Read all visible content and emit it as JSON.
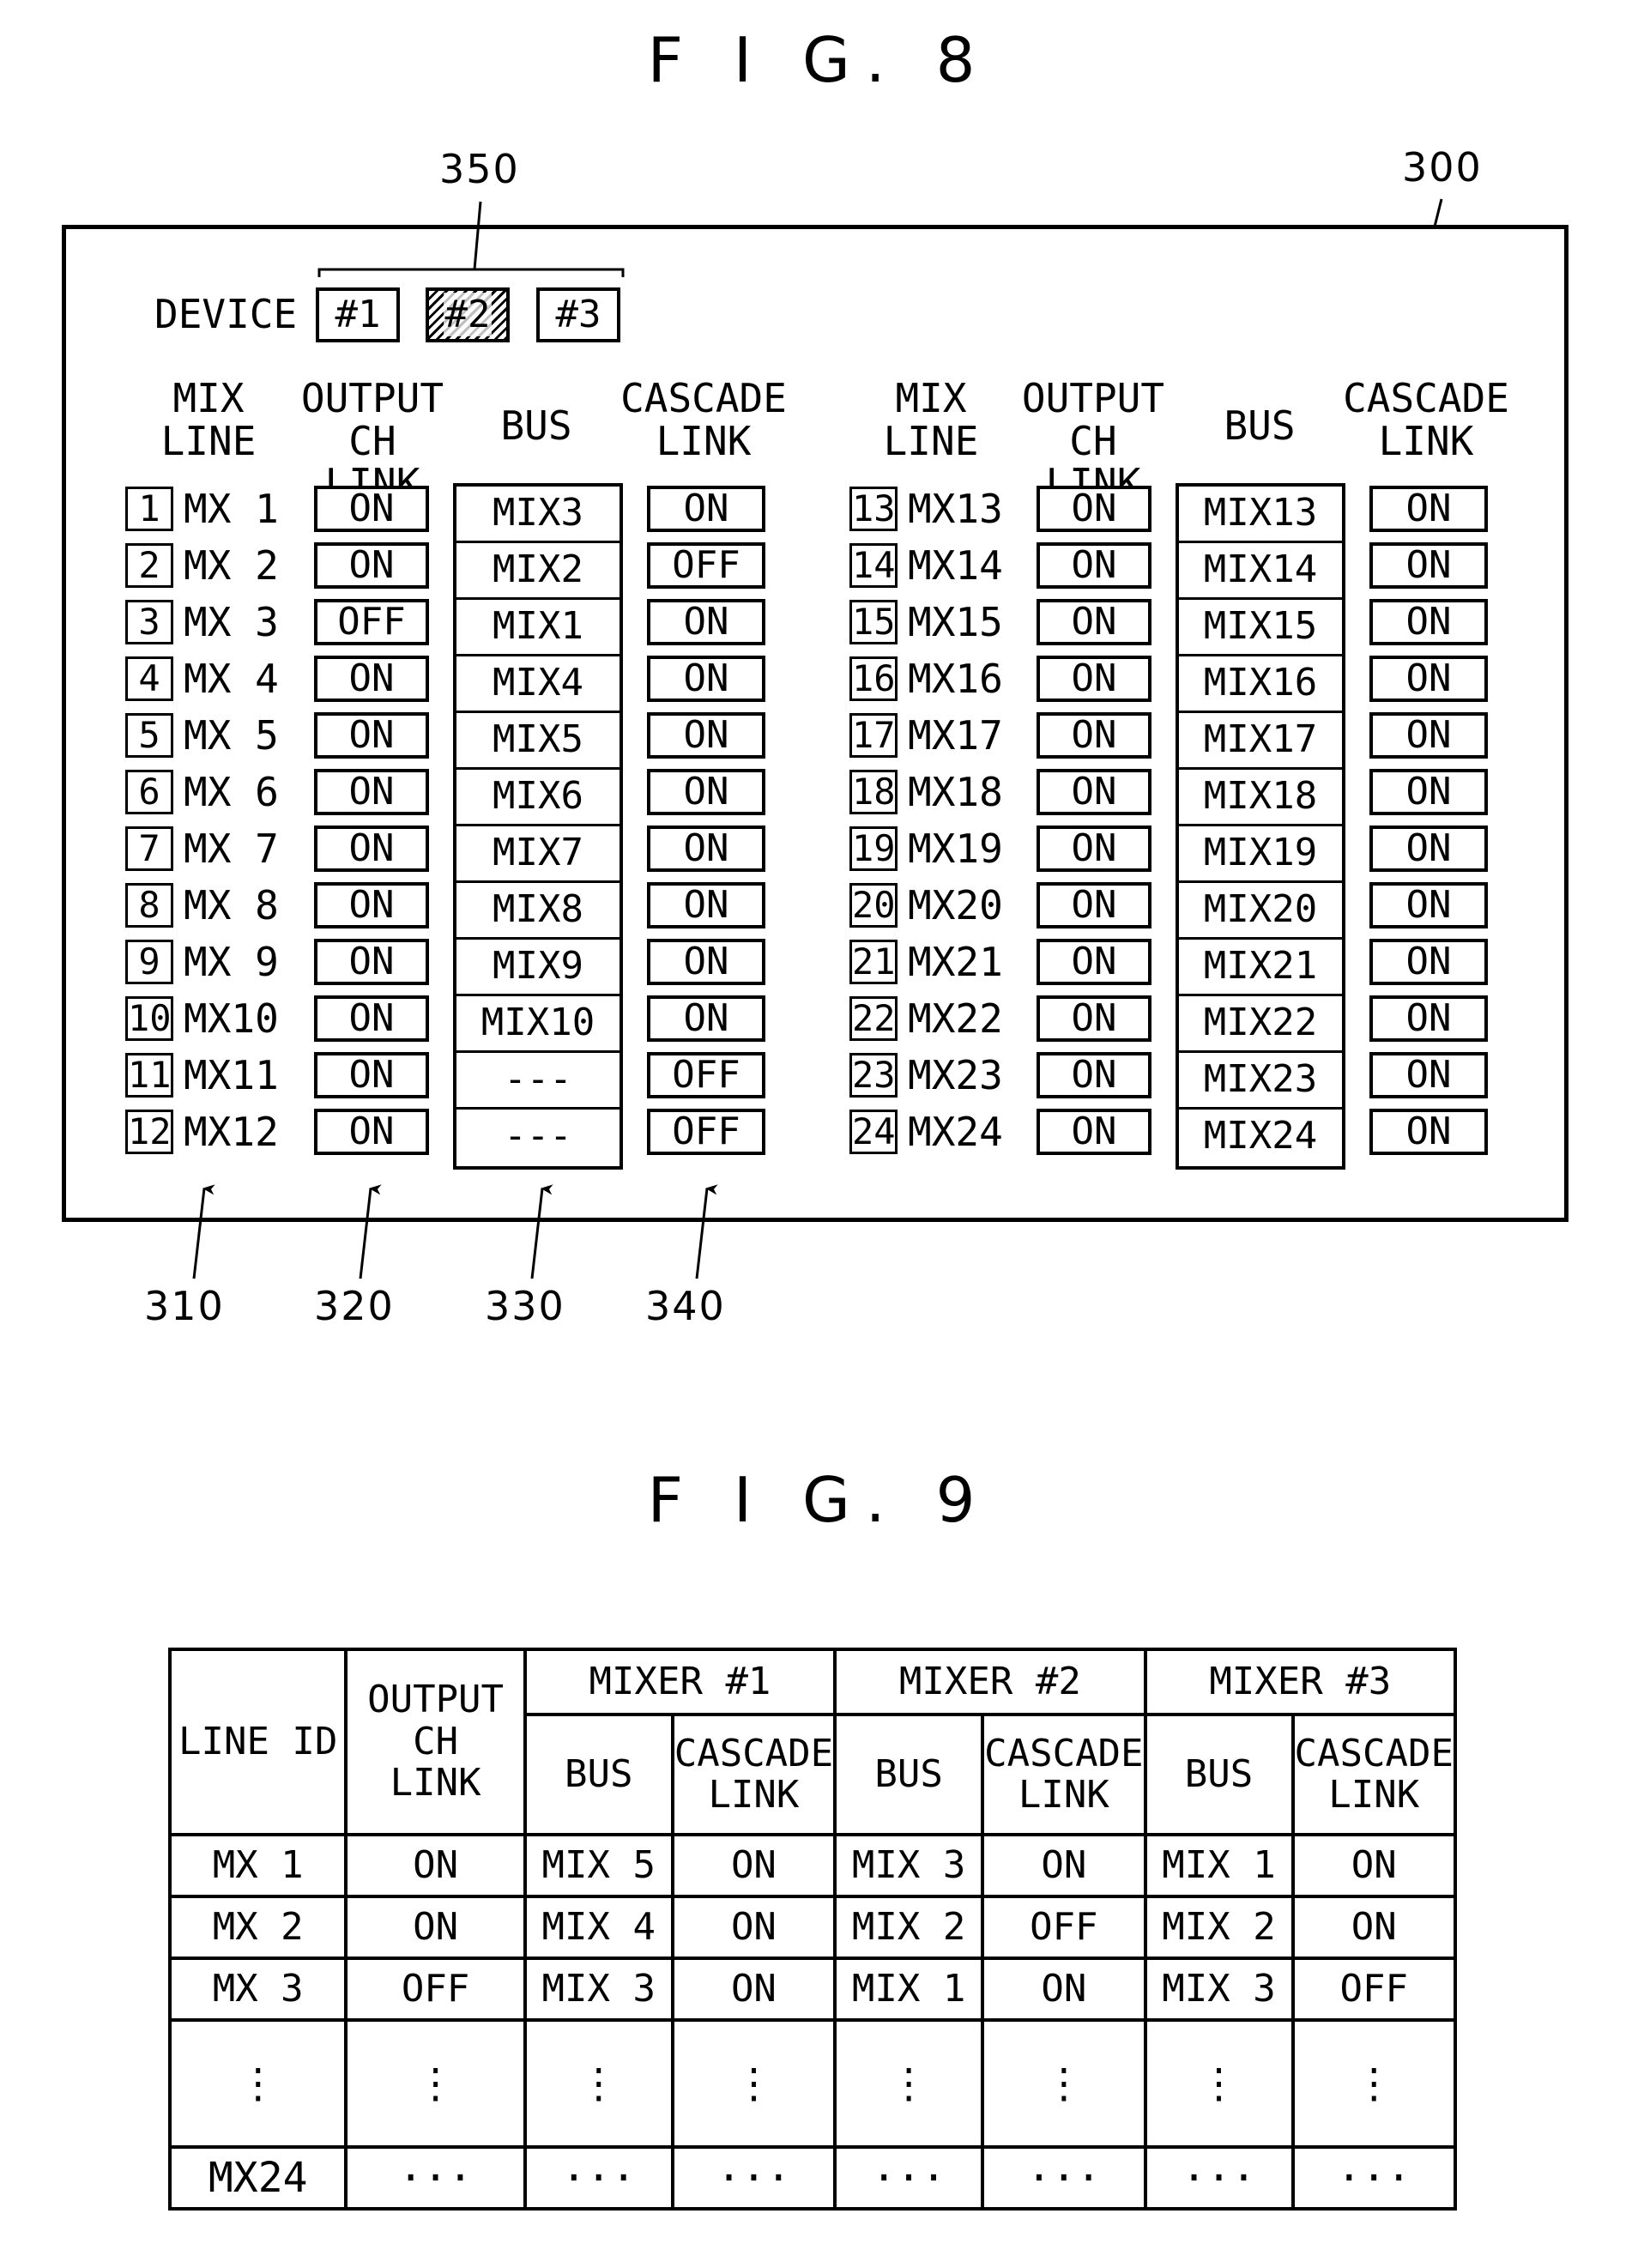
{
  "fig8": {
    "title": "F I G. 8",
    "ref_panel": "300",
    "ref_device": "350",
    "device_label": "DEVICE",
    "devices": [
      "#1",
      "#2",
      "#3"
    ],
    "selected_device": "#2",
    "headers": {
      "mix_line": "MIX\nLINE",
      "output_ch_link": "OUTPUT\nCH LINK",
      "bus": "BUS",
      "cascade_link": "CASCADE\nLINK"
    },
    "rows_left": [
      {
        "num": "1",
        "name": "MX 1",
        "output": "ON",
        "bus": "MIX3",
        "cascade": "ON"
      },
      {
        "num": "2",
        "name": "MX 2",
        "output": "ON",
        "bus": "MIX2",
        "cascade": "OFF"
      },
      {
        "num": "3",
        "name": "MX 3",
        "output": "OFF",
        "bus": "MIX1",
        "cascade": "ON"
      },
      {
        "num": "4",
        "name": "MX 4",
        "output": "ON",
        "bus": "MIX4",
        "cascade": "ON"
      },
      {
        "num": "5",
        "name": "MX 5",
        "output": "ON",
        "bus": "MIX5",
        "cascade": "ON"
      },
      {
        "num": "6",
        "name": "MX 6",
        "output": "ON",
        "bus": "MIX6",
        "cascade": "ON"
      },
      {
        "num": "7",
        "name": "MX 7",
        "output": "ON",
        "bus": "MIX7",
        "cascade": "ON"
      },
      {
        "num": "8",
        "name": "MX 8",
        "output": "ON",
        "bus": "MIX8",
        "cascade": "ON"
      },
      {
        "num": "9",
        "name": "MX 9",
        "output": "ON",
        "bus": "MIX9",
        "cascade": "ON"
      },
      {
        "num": "10",
        "name": "MX10",
        "output": "ON",
        "bus": "MIX10",
        "cascade": "ON"
      },
      {
        "num": "11",
        "name": "MX11",
        "output": "ON",
        "bus": "---",
        "cascade": "OFF"
      },
      {
        "num": "12",
        "name": "MX12",
        "output": "ON",
        "bus": "---",
        "cascade": "OFF"
      }
    ],
    "rows_right": [
      {
        "num": "13",
        "name": "MX13",
        "output": "ON",
        "bus": "MIX13",
        "cascade": "ON"
      },
      {
        "num": "14",
        "name": "MX14",
        "output": "ON",
        "bus": "MIX14",
        "cascade": "ON"
      },
      {
        "num": "15",
        "name": "MX15",
        "output": "ON",
        "bus": "MIX15",
        "cascade": "ON"
      },
      {
        "num": "16",
        "name": "MX16",
        "output": "ON",
        "bus": "MIX16",
        "cascade": "ON"
      },
      {
        "num": "17",
        "name": "MX17",
        "output": "ON",
        "bus": "MIX17",
        "cascade": "ON"
      },
      {
        "num": "18",
        "name": "MX18",
        "output": "ON",
        "bus": "MIX18",
        "cascade": "ON"
      },
      {
        "num": "19",
        "name": "MX19",
        "output": "ON",
        "bus": "MIX19",
        "cascade": "ON"
      },
      {
        "num": "20",
        "name": "MX20",
        "output": "ON",
        "bus": "MIX20",
        "cascade": "ON"
      },
      {
        "num": "21",
        "name": "MX21",
        "output": "ON",
        "bus": "MIX21",
        "cascade": "ON"
      },
      {
        "num": "22",
        "name": "MX22",
        "output": "ON",
        "bus": "MIX22",
        "cascade": "ON"
      },
      {
        "num": "23",
        "name": "MX23",
        "output": "ON",
        "bus": "MIX23",
        "cascade": "ON"
      },
      {
        "num": "24",
        "name": "MX24",
        "output": "ON",
        "bus": "MIX24",
        "cascade": "ON"
      }
    ],
    "refs_bottom": [
      "310",
      "320",
      "330",
      "340"
    ]
  },
  "fig9": {
    "title": "F I G. 9",
    "headers": {
      "line_id": "LINE ID",
      "output_ch_link": "OUTPUT\nCH\nLINK",
      "mixers": [
        "MIXER #1",
        "MIXER #2",
        "MIXER #3"
      ],
      "bus": "BUS",
      "cascade_link": "CASCADE\nLINK"
    },
    "rows": [
      {
        "line_id": "MX 1",
        "output": "ON",
        "cells": [
          "MIX 5",
          "ON",
          "MIX 3",
          "ON",
          "MIX 1",
          "ON"
        ]
      },
      {
        "line_id": "MX 2",
        "output": "ON",
        "cells": [
          "MIX 4",
          "ON",
          "MIX 2",
          "OFF",
          "MIX 2",
          "ON"
        ]
      },
      {
        "line_id": "MX 3",
        "output": "OFF",
        "cells": [
          "MIX 3",
          "ON",
          "MIX 1",
          "ON",
          "MIX 3",
          "OFF"
        ]
      },
      {
        "line_id": "⋮",
        "output": "⋮",
        "cells": [
          "⋮",
          "⋮",
          "⋮",
          "⋮",
          "⋮",
          "⋮"
        ]
      },
      {
        "line_id": "MX24",
        "output": "···",
        "cells": [
          "···",
          "···",
          "···",
          "···",
          "···",
          "···"
        ]
      }
    ]
  }
}
